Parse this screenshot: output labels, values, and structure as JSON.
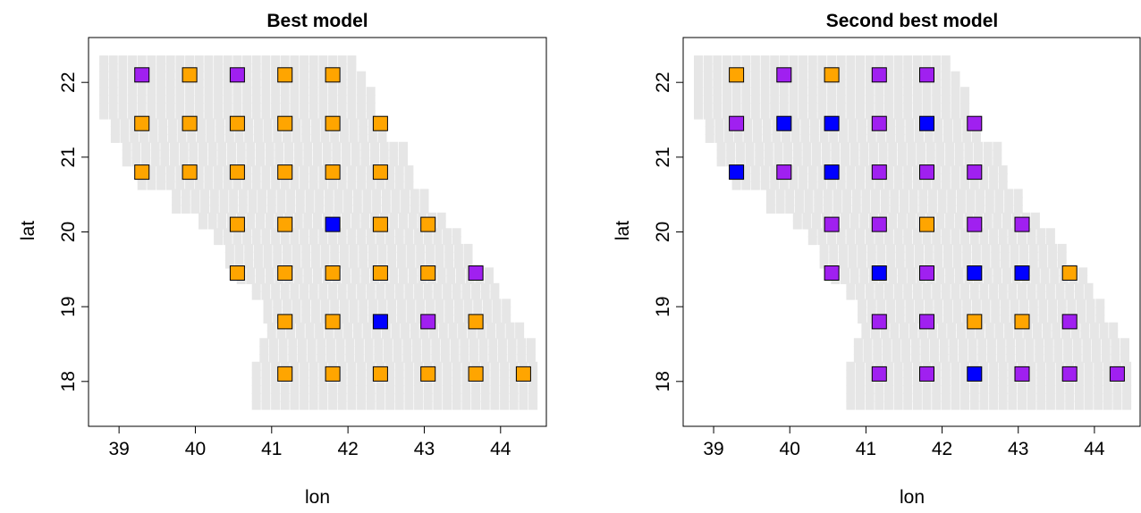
{
  "colors": {
    "orange": "#FFA500",
    "blue": "#0000FF",
    "purple": "#A020F0",
    "grid_background": "#E6E6E6"
  },
  "chart_data": [
    {
      "type": "scatter",
      "title": "Best model",
      "xlabel": "lon",
      "ylabel": "lat",
      "xlim": [
        38.6,
        44.6
      ],
      "ylim": [
        17.4,
        22.6
      ],
      "xticks": [
        39,
        40,
        41,
        42,
        43,
        44
      ],
      "yticks": [
        18,
        19,
        20,
        21,
        22
      ],
      "grid_region": "gray square cells over the study domain",
      "point_columns_lon": [
        39.3,
        39.925,
        40.55,
        41.175,
        41.8,
        42.425,
        43.05,
        43.675,
        44.3
      ],
      "point_rows_lat": [
        22.1,
        21.45,
        20.8,
        20.1,
        19.45,
        18.8,
        18.1
      ],
      "points": [
        {
          "lon": 39.3,
          "lat": 22.1,
          "color": "purple"
        },
        {
          "lon": 39.925,
          "lat": 22.1,
          "color": "orange"
        },
        {
          "lon": 40.55,
          "lat": 22.1,
          "color": "purple"
        },
        {
          "lon": 41.175,
          "lat": 22.1,
          "color": "orange"
        },
        {
          "lon": 41.8,
          "lat": 22.1,
          "color": "orange"
        },
        {
          "lon": 39.3,
          "lat": 21.45,
          "color": "orange"
        },
        {
          "lon": 39.925,
          "lat": 21.45,
          "color": "orange"
        },
        {
          "lon": 40.55,
          "lat": 21.45,
          "color": "orange"
        },
        {
          "lon": 41.175,
          "lat": 21.45,
          "color": "orange"
        },
        {
          "lon": 41.8,
          "lat": 21.45,
          "color": "orange"
        },
        {
          "lon": 42.425,
          "lat": 21.45,
          "color": "orange"
        },
        {
          "lon": 39.3,
          "lat": 20.8,
          "color": "orange"
        },
        {
          "lon": 39.925,
          "lat": 20.8,
          "color": "orange"
        },
        {
          "lon": 40.55,
          "lat": 20.8,
          "color": "orange"
        },
        {
          "lon": 41.175,
          "lat": 20.8,
          "color": "orange"
        },
        {
          "lon": 41.8,
          "lat": 20.8,
          "color": "orange"
        },
        {
          "lon": 42.425,
          "lat": 20.8,
          "color": "orange"
        },
        {
          "lon": 40.55,
          "lat": 20.1,
          "color": "orange"
        },
        {
          "lon": 41.175,
          "lat": 20.1,
          "color": "orange"
        },
        {
          "lon": 41.8,
          "lat": 20.1,
          "color": "blue"
        },
        {
          "lon": 42.425,
          "lat": 20.1,
          "color": "orange"
        },
        {
          "lon": 43.05,
          "lat": 20.1,
          "color": "orange"
        },
        {
          "lon": 40.55,
          "lat": 19.45,
          "color": "orange"
        },
        {
          "lon": 41.175,
          "lat": 19.45,
          "color": "orange"
        },
        {
          "lon": 41.8,
          "lat": 19.45,
          "color": "orange"
        },
        {
          "lon": 42.425,
          "lat": 19.45,
          "color": "orange"
        },
        {
          "lon": 43.05,
          "lat": 19.45,
          "color": "orange"
        },
        {
          "lon": 43.675,
          "lat": 19.45,
          "color": "purple"
        },
        {
          "lon": 41.175,
          "lat": 18.8,
          "color": "orange"
        },
        {
          "lon": 41.8,
          "lat": 18.8,
          "color": "orange"
        },
        {
          "lon": 42.425,
          "lat": 18.8,
          "color": "blue"
        },
        {
          "lon": 43.05,
          "lat": 18.8,
          "color": "purple"
        },
        {
          "lon": 43.675,
          "lat": 18.8,
          "color": "orange"
        },
        {
          "lon": 41.175,
          "lat": 18.1,
          "color": "orange"
        },
        {
          "lon": 41.8,
          "lat": 18.1,
          "color": "orange"
        },
        {
          "lon": 42.425,
          "lat": 18.1,
          "color": "orange"
        },
        {
          "lon": 43.05,
          "lat": 18.1,
          "color": "orange"
        },
        {
          "lon": 43.675,
          "lat": 18.1,
          "color": "orange"
        },
        {
          "lon": 44.3,
          "lat": 18.1,
          "color": "orange"
        }
      ]
    },
    {
      "type": "scatter",
      "title": "Second best model",
      "xlabel": "lon",
      "ylabel": "lat",
      "xlim": [
        38.6,
        44.6
      ],
      "ylim": [
        17.4,
        22.6
      ],
      "xticks": [
        39,
        40,
        41,
        42,
        43,
        44
      ],
      "yticks": [
        18,
        19,
        20,
        21,
        22
      ],
      "grid_region": "gray square cells over the study domain",
      "point_columns_lon": [
        39.3,
        39.925,
        40.55,
        41.175,
        41.8,
        42.425,
        43.05,
        43.675,
        44.3
      ],
      "point_rows_lat": [
        22.1,
        21.45,
        20.8,
        20.1,
        19.45,
        18.8,
        18.1
      ],
      "points": [
        {
          "lon": 39.3,
          "lat": 22.1,
          "color": "orange"
        },
        {
          "lon": 39.925,
          "lat": 22.1,
          "color": "purple"
        },
        {
          "lon": 40.55,
          "lat": 22.1,
          "color": "orange"
        },
        {
          "lon": 41.175,
          "lat": 22.1,
          "color": "purple"
        },
        {
          "lon": 41.8,
          "lat": 22.1,
          "color": "purple"
        },
        {
          "lon": 39.3,
          "lat": 21.45,
          "color": "purple"
        },
        {
          "lon": 39.925,
          "lat": 21.45,
          "color": "blue"
        },
        {
          "lon": 40.55,
          "lat": 21.45,
          "color": "blue"
        },
        {
          "lon": 41.175,
          "lat": 21.45,
          "color": "purple"
        },
        {
          "lon": 41.8,
          "lat": 21.45,
          "color": "blue"
        },
        {
          "lon": 42.425,
          "lat": 21.45,
          "color": "purple"
        },
        {
          "lon": 39.3,
          "lat": 20.8,
          "color": "blue"
        },
        {
          "lon": 39.925,
          "lat": 20.8,
          "color": "purple"
        },
        {
          "lon": 40.55,
          "lat": 20.8,
          "color": "blue"
        },
        {
          "lon": 41.175,
          "lat": 20.8,
          "color": "purple"
        },
        {
          "lon": 41.8,
          "lat": 20.8,
          "color": "purple"
        },
        {
          "lon": 42.425,
          "lat": 20.8,
          "color": "purple"
        },
        {
          "lon": 40.55,
          "lat": 20.1,
          "color": "purple"
        },
        {
          "lon": 41.175,
          "lat": 20.1,
          "color": "purple"
        },
        {
          "lon": 41.8,
          "lat": 20.1,
          "color": "orange"
        },
        {
          "lon": 42.425,
          "lat": 20.1,
          "color": "purple"
        },
        {
          "lon": 43.05,
          "lat": 20.1,
          "color": "purple"
        },
        {
          "lon": 40.55,
          "lat": 19.45,
          "color": "purple"
        },
        {
          "lon": 41.175,
          "lat": 19.45,
          "color": "blue"
        },
        {
          "lon": 41.8,
          "lat": 19.45,
          "color": "purple"
        },
        {
          "lon": 42.425,
          "lat": 19.45,
          "color": "blue"
        },
        {
          "lon": 43.05,
          "lat": 19.45,
          "color": "blue"
        },
        {
          "lon": 43.675,
          "lat": 19.45,
          "color": "orange"
        },
        {
          "lon": 41.175,
          "lat": 18.8,
          "color": "purple"
        },
        {
          "lon": 41.8,
          "lat": 18.8,
          "color": "purple"
        },
        {
          "lon": 42.425,
          "lat": 18.8,
          "color": "orange"
        },
        {
          "lon": 43.05,
          "lat": 18.8,
          "color": "orange"
        },
        {
          "lon": 43.675,
          "lat": 18.8,
          "color": "purple"
        },
        {
          "lon": 41.175,
          "lat": 18.1,
          "color": "purple"
        },
        {
          "lon": 41.8,
          "lat": 18.1,
          "color": "purple"
        },
        {
          "lon": 42.425,
          "lat": 18.1,
          "color": "blue"
        },
        {
          "lon": 43.05,
          "lat": 18.1,
          "color": "purple"
        },
        {
          "lon": 43.675,
          "lat": 18.1,
          "color": "purple"
        },
        {
          "lon": 44.3,
          "lat": 18.1,
          "color": "purple"
        }
      ]
    }
  ]
}
